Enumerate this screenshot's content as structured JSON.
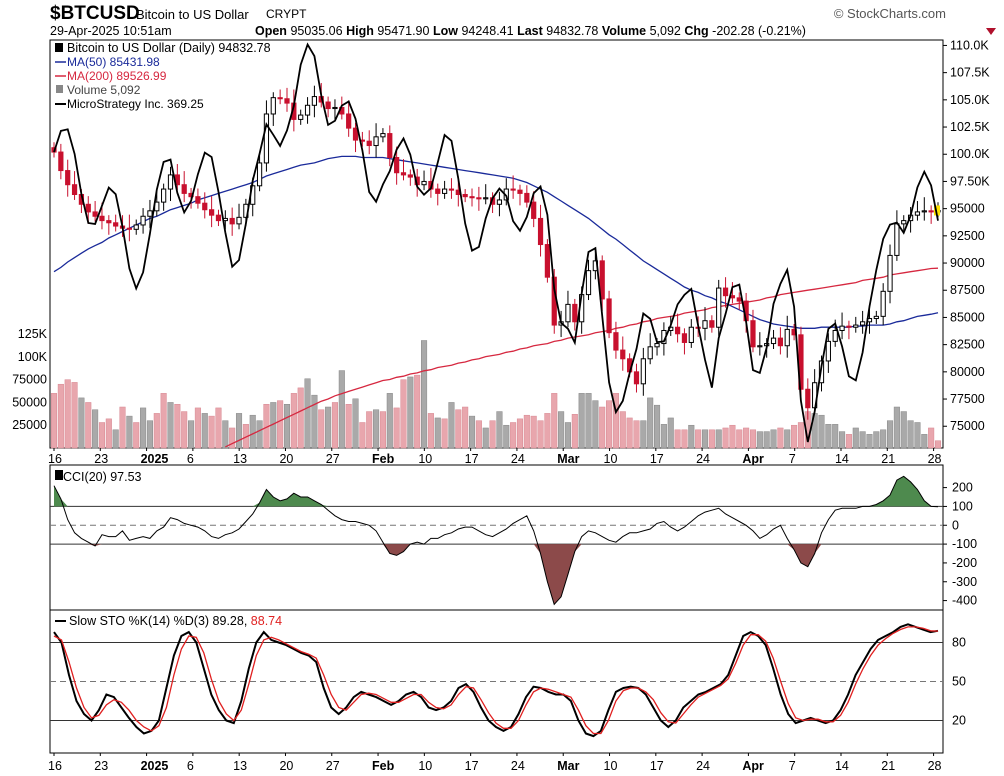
{
  "header": {
    "symbol": "$BTCUSD",
    "description": "Bitcoin to US Dollar",
    "exchange": "CRYPT",
    "brand": "© StockCharts.com",
    "datetime": "29-Apr-2025 10:51am",
    "open_label": "Open",
    "open": "95035.06",
    "high_label": "High",
    "high": "95471.90",
    "low_label": "Low",
    "low": "94248.41",
    "last_label": "Last",
    "last": "94832.78",
    "volume_label": "Volume",
    "volume": "5,092",
    "chg_label": "Chg",
    "chg": "-202.28 (-0.21%)"
  },
  "legend": {
    "price": "Bitcoin to US Dollar (Daily) 94832.78",
    "ma50": "MA(50) 85431.98",
    "ma200": "MA(200) 89526.99",
    "volume": "Volume 5,092",
    "mstr": "MicroStrategy Inc. 369.25",
    "cci": "CCI(20) 97.53",
    "sto_prefix": "Slow STO %K(14) %D(3) 89.28,",
    "sto_d": "88.74"
  },
  "colors": {
    "up": "#000000",
    "down": "#c8102e",
    "ma50": "#1a2a9a",
    "ma200": "#d62840",
    "mstr": "#000000",
    "vol_up": "#a9a9a9",
    "vol_down": "#e8a6ad",
    "cci_pos": "#4e8a4e",
    "cci_neg": "#8c4a4a",
    "sto_k": "#000000",
    "sto_d": "#e02020"
  },
  "chart_data": [
    {
      "type": "candlestick",
      "title": "$BTCUSD Bitcoin to US Dollar",
      "ylim": [
        73000,
        110500
      ],
      "y_ticks": [
        "110.0K",
        "107.5K",
        "105.0K",
        "102.5K",
        "100.0K",
        "97.50K",
        "95000",
        "92500",
        "90000",
        "87500",
        "85000",
        "82500",
        "80000",
        "77500",
        "75000"
      ],
      "x_tick_labels": [
        "16",
        "23",
        "2025",
        "6",
        "13",
        "20",
        "27",
        "Feb",
        "10",
        "17",
        "24",
        "Mar",
        "10",
        "17",
        "24",
        "Apr",
        "7",
        "14",
        "21",
        "28"
      ],
      "close": [
        100200,
        98500,
        97200,
        96300,
        95400,
        94700,
        94300,
        93900,
        93700,
        93400,
        93200,
        93100,
        93500,
        94300,
        94800,
        95600,
        96800,
        98100,
        97200,
        96400,
        96100,
        95500,
        94900,
        94400,
        93900,
        94100,
        93600,
        94200,
        95400,
        97100,
        99200,
        103700,
        105200,
        105100,
        104700,
        103200,
        103600,
        104500,
        105300,
        104800,
        104200,
        104300,
        103700,
        102400,
        101300,
        101200,
        100800,
        101600,
        101900,
        99700,
        98300,
        98100,
        97900,
        97200,
        97500,
        96800,
        96400,
        96800,
        96700,
        96300,
        96100,
        96000,
        95900,
        96000,
        95400,
        95800,
        96800,
        96700,
        96400,
        95600,
        94100,
        91700,
        88700,
        84300,
        84600,
        86200,
        84600,
        87100,
        89300,
        90200,
        86700,
        83600,
        82000,
        81200,
        80000,
        78900,
        81200,
        82300,
        82600,
        83800,
        84100,
        83500,
        82700,
        84100,
        84000,
        84700,
        84100,
        87700,
        87000,
        86800,
        86500,
        84700,
        82300,
        82400,
        82600,
        83100,
        82400,
        83900,
        83400,
        78400,
        76700,
        79000,
        81000,
        82800,
        83800,
        84200,
        84100,
        84300,
        84600,
        84900,
        85100,
        87400,
        90700,
        93600,
        93900,
        94400,
        94700,
        94800,
        94700,
        94832
      ],
      "ma50": [
        89200,
        89600,
        90100,
        90500,
        90900,
        91300,
        91600,
        91900,
        92300,
        92600,
        92900,
        93200,
        93500,
        93800,
        94100,
        94300,
        94600,
        94900,
        95100,
        95300,
        95500,
        95800,
        96000,
        96200,
        96400,
        96600,
        96800,
        97000,
        97200,
        97400,
        97700,
        98000,
        98200,
        98400,
        98600,
        98800,
        99000,
        99100,
        99200,
        99400,
        99600,
        99700,
        99800,
        99800,
        99800,
        99700,
        99700,
        99700,
        99700,
        99600,
        99500,
        99400,
        99300,
        99200,
        99100,
        99000,
        98900,
        98800,
        98700,
        98600,
        98500,
        98400,
        98300,
        98200,
        98100,
        98000,
        97900,
        97800,
        97600,
        97400,
        97100,
        96800,
        96500,
        96100,
        95700,
        95300,
        94900,
        94500,
        94100,
        93600,
        93100,
        92600,
        92200,
        91700,
        91200,
        90700,
        90200,
        89800,
        89400,
        89000,
        88600,
        88200,
        87800,
        87500,
        87300,
        87000,
        86800,
        86500,
        86300,
        86000,
        85700,
        85400,
        85100,
        84800,
        84600,
        84400,
        84300,
        84200,
        84100,
        84000,
        84000,
        84000,
        84100,
        84100,
        84100,
        84100,
        84100,
        84200,
        84200,
        84300,
        84300,
        84300,
        84400,
        84600,
        84700,
        84900,
        85100,
        85200,
        85300,
        85432
      ],
      "ma200": [
        null,
        null,
        null,
        null,
        null,
        null,
        null,
        null,
        null,
        null,
        null,
        null,
        null,
        null,
        null,
        null,
        null,
        null,
        null,
        null,
        null,
        null,
        null,
        null,
        null,
        73100,
        73400,
        73700,
        74000,
        74300,
        74600,
        74900,
        75200,
        75500,
        75800,
        76100,
        76400,
        76700,
        77000,
        77300,
        77500,
        77800,
        78000,
        78200,
        78400,
        78600,
        78800,
        79000,
        79200,
        79300,
        79500,
        79600,
        79800,
        79900,
        80100,
        80200,
        80400,
        80500,
        80600,
        80800,
        80900,
        81100,
        81200,
        81400,
        81500,
        81600,
        81800,
        81900,
        82100,
        82200,
        82400,
        82500,
        82600,
        82800,
        82900,
        83100,
        83200,
        83300,
        83400,
        83600,
        83700,
        83800,
        84000,
        84100,
        84300,
        84400,
        84600,
        84700,
        84900,
        85000,
        85100,
        85200,
        85400,
        85500,
        85600,
        85700,
        85900,
        86000,
        86100,
        86200,
        86300,
        86400,
        86500,
        86600,
        86800,
        86900,
        87100,
        87200,
        87300,
        87400,
        87500,
        87600,
        87700,
        87800,
        87900,
        88000,
        88100,
        88200,
        88400,
        88500,
        88600,
        88700,
        88900,
        89000,
        89100,
        89200,
        89300,
        89400,
        89500,
        89527
      ]
    },
    {
      "type": "bar",
      "title": "Volume",
      "y_ticks": [
        "125K",
        "100K",
        "75000",
        "50000",
        "25000"
      ],
      "ylim": [
        0,
        135000
      ],
      "values": [
        60000,
        70000,
        75000,
        72000,
        55000,
        50000,
        42000,
        28000,
        32000,
        20000,
        45000,
        35000,
        28000,
        44000,
        30000,
        38000,
        60000,
        50000,
        48000,
        40000,
        30000,
        44000,
        38000,
        35000,
        44000,
        30000,
        22000,
        38000,
        26000,
        36000,
        30000,
        48000,
        50000,
        52000,
        48000,
        60000,
        66000,
        76000,
        58000,
        42000,
        45000,
        50000,
        85000,
        48000,
        54000,
        28000,
        40000,
        42000,
        40000,
        60000,
        44000,
        75000,
        78000,
        80000,
        118000,
        38000,
        33000,
        32000,
        50000,
        42000,
        45000,
        35000,
        30000,
        22000,
        30000,
        40000,
        25000,
        28000,
        32000,
        36000,
        35000,
        30000,
        38000,
        60000,
        40000,
        28000,
        37000,
        60000,
        60000,
        52000,
        45000,
        52000,
        60000,
        40000,
        33000,
        30000,
        30000,
        55000,
        47000,
        26000,
        33000,
        20000,
        20000,
        25000,
        20000,
        20000,
        20000,
        20000,
        22000,
        25000,
        20000,
        22000,
        20000,
        18000,
        18000,
        20000,
        22000,
        20000,
        25000,
        28000,
        40000,
        38000,
        36000,
        26000,
        26000,
        18000,
        15000,
        22000,
        18000,
        15000,
        18000,
        20000,
        30000,
        45000,
        40000,
        30000,
        28000,
        15000,
        22000,
        8000
      ],
      "up": [
        false,
        false,
        false,
        false,
        true,
        false,
        true,
        false,
        false,
        true,
        false,
        true,
        false,
        true,
        true,
        false,
        false,
        true,
        false,
        false,
        true,
        false,
        true,
        false,
        false,
        true,
        false,
        true,
        false,
        true,
        true,
        false,
        true,
        false,
        true,
        false,
        false,
        true,
        true,
        false,
        true,
        false,
        true,
        false,
        true,
        false,
        false,
        true,
        false,
        true,
        false,
        false,
        true,
        false,
        true,
        false,
        true,
        false,
        true,
        false,
        false,
        true,
        false,
        true,
        false,
        true,
        true,
        false,
        false,
        false,
        false,
        false,
        false,
        false,
        true,
        true,
        false,
        true,
        true,
        true,
        false,
        false,
        false,
        false,
        false,
        false,
        true,
        true,
        true,
        true,
        true,
        false,
        false,
        true,
        false,
        true,
        false,
        true,
        false,
        false,
        false,
        false,
        false,
        true,
        true,
        true,
        false,
        true,
        false,
        false,
        false,
        true,
        true,
        true,
        true,
        true,
        false,
        true,
        true,
        true,
        true,
        true,
        true,
        true,
        true,
        true,
        true,
        true,
        false,
        false
      ]
    },
    {
      "type": "area",
      "title": "CCI(20)",
      "ylim": [
        -450,
        320
      ],
      "y_ticks": [
        "200",
        "100",
        "0",
        "-100",
        "-200",
        "-300",
        "-400"
      ],
      "values": [
        210,
        140,
        30,
        -40,
        -70,
        -90,
        -110,
        -50,
        -60,
        -60,
        -30,
        -80,
        -70,
        -60,
        -70,
        -30,
        -10,
        40,
        30,
        10,
        0,
        -10,
        -30,
        -60,
        -70,
        -50,
        -40,
        -20,
        20,
        60,
        120,
        190,
        150,
        130,
        140,
        170,
        150,
        150,
        130,
        110,
        80,
        50,
        30,
        20,
        20,
        10,
        0,
        -30,
        -90,
        -150,
        -160,
        -140,
        -100,
        -90,
        -100,
        -70,
        -70,
        -50,
        -40,
        -20,
        -10,
        -10,
        -30,
        -50,
        -60,
        -40,
        -20,
        10,
        30,
        50,
        -30,
        -150,
        -300,
        -420,
        -380,
        -260,
        -140,
        -60,
        -30,
        -40,
        -60,
        -80,
        -90,
        -60,
        -40,
        -40,
        -30,
        -20,
        10,
        20,
        -10,
        -30,
        -10,
        20,
        50,
        70,
        80,
        90,
        60,
        40,
        20,
        0,
        -30,
        -70,
        -50,
        -20,
        0,
        -70,
        -130,
        -200,
        -220,
        -150,
        -40,
        30,
        80,
        90,
        90,
        90,
        100,
        100,
        110,
        130,
        160,
        240,
        260,
        230,
        190,
        130,
        100,
        98
      ],
      "thresholds": [
        100,
        0,
        -100
      ]
    },
    {
      "type": "line",
      "title": "Slow STO %K(14) %D(3)",
      "ylim": [
        -5,
        105
      ],
      "y_ticks": [
        "80",
        "50",
        "20"
      ],
      "series": [
        {
          "name": "%K",
          "values": [
            88,
            80,
            55,
            35,
            25,
            20,
            28,
            40,
            38,
            30,
            22,
            15,
            10,
            12,
            20,
            45,
            70,
            85,
            88,
            80,
            60,
            40,
            28,
            20,
            18,
            35,
            60,
            80,
            88,
            82,
            80,
            78,
            75,
            72,
            70,
            65,
            45,
            30,
            25,
            30,
            38,
            42,
            40,
            38,
            35,
            32,
            35,
            40,
            42,
            38,
            30,
            28,
            30,
            35,
            45,
            48,
            42,
            30,
            20,
            15,
            12,
            15,
            25,
            38,
            46,
            45,
            42,
            40,
            40,
            35,
            20,
            10,
            8,
            12,
            28,
            42,
            45,
            46,
            45,
            40,
            30,
            20,
            15,
            20,
            30,
            35,
            40,
            42,
            45,
            48,
            55,
            70,
            85,
            88,
            85,
            78,
            60,
            40,
            25,
            18,
            20,
            22,
            20,
            18,
            20,
            28,
            40,
            55,
            65,
            75,
            82,
            85,
            88,
            92,
            94,
            92,
            90,
            88,
            89
          ]
        },
        {
          "name": "%D",
          "values": [
            85,
            82,
            65,
            45,
            30,
            22,
            24,
            32,
            36,
            34,
            28,
            20,
            15,
            12,
            16,
            30,
            55,
            75,
            85,
            84,
            72,
            52,
            35,
            25,
            20,
            28,
            48,
            70,
            82,
            84,
            82,
            79,
            76,
            73,
            71,
            68,
            55,
            40,
            30,
            28,
            34,
            40,
            41,
            40,
            37,
            34,
            34,
            37,
            40,
            40,
            34,
            30,
            29,
            32,
            40,
            46,
            45,
            36,
            26,
            18,
            14,
            14,
            20,
            32,
            42,
            45,
            44,
            42,
            40,
            38,
            28,
            16,
            10,
            10,
            20,
            35,
            43,
            45,
            45,
            42,
            36,
            26,
            19,
            18,
            25,
            32,
            38,
            41,
            44,
            47,
            52,
            64,
            78,
            86,
            86,
            81,
            68,
            50,
            33,
            22,
            20,
            21,
            21,
            19,
            19,
            24,
            34,
            48,
            60,
            70,
            78,
            83,
            87,
            90,
            92,
            92,
            91,
            89,
            88.74
          ]
        }
      ]
    }
  ]
}
